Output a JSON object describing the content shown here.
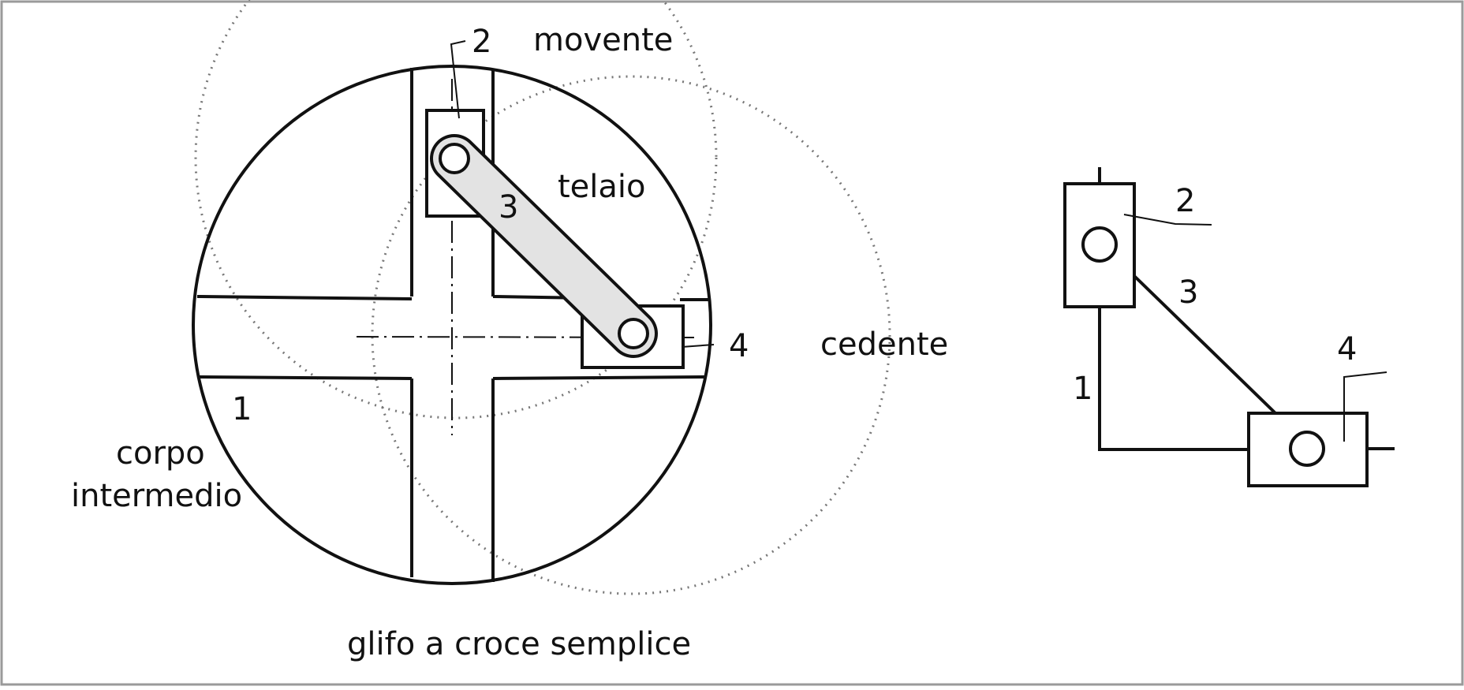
{
  "diagram": {
    "caption": "glifo a croce semplice",
    "labels": {
      "movente": "movente",
      "telaio": "telaio",
      "cedente": "cedente",
      "corpo_line1": "corpo",
      "corpo_line2": "intermedio"
    },
    "main_numbers": {
      "n1": "1",
      "n2": "2",
      "n3": "3",
      "n4": "4"
    },
    "schema_numbers": {
      "n1": "1",
      "n2": "2",
      "n3": "3",
      "n4": "4"
    },
    "colors": {
      "line": "#111111",
      "link_fill": "#e3e3e3",
      "dotted": "#777777",
      "frame": "#9a9a9a"
    }
  }
}
